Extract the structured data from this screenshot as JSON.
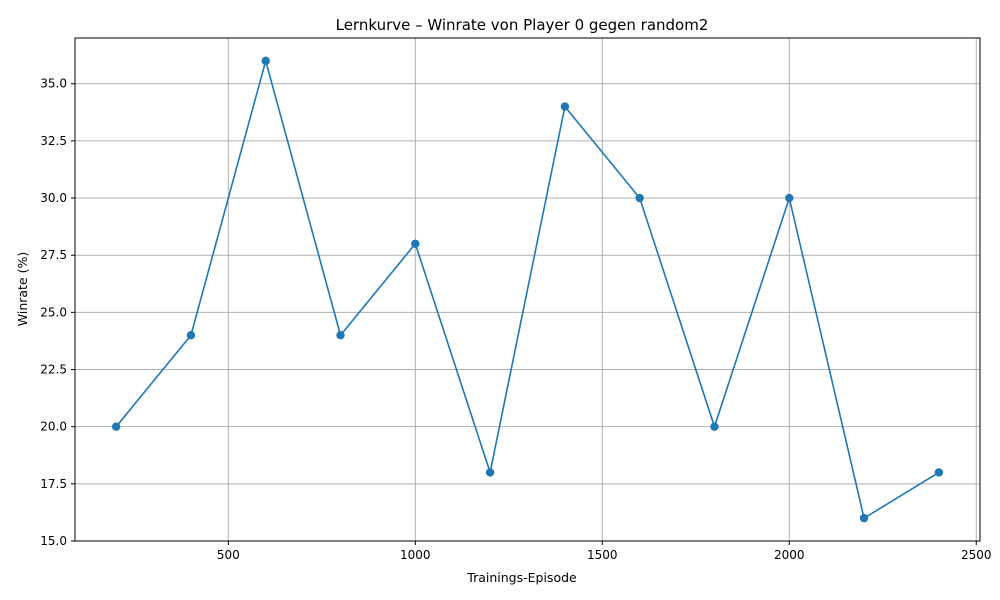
{
  "chart_data": {
    "type": "line",
    "title": "Lernkurve – Winrate von Player 0 gegen random2",
    "xlabel": "Trainings-Episode",
    "ylabel": "Winrate (%)",
    "xlim": [
      90,
      2510
    ],
    "ylim": [
      15.0,
      37.0
    ],
    "x_ticks": [
      500,
      1000,
      1500,
      2000,
      2500
    ],
    "x_tick_labels": [
      "500",
      "1000",
      "1500",
      "2000",
      "2500"
    ],
    "y_ticks": [
      15.0,
      17.5,
      20.0,
      22.5,
      25.0,
      27.5,
      30.0,
      32.5,
      35.0
    ],
    "y_tick_labels": [
      "15.0",
      "17.5",
      "20.0",
      "22.5",
      "25.0",
      "27.5",
      "30.0",
      "32.5",
      "35.0"
    ],
    "grid": true,
    "marker": "circle",
    "series": [
      {
        "color": "#1f77b4",
        "x": [
          200,
          400,
          600,
          800,
          1000,
          1200,
          1400,
          1600,
          1800,
          2000,
          2200,
          2400
        ],
        "y": [
          20,
          24,
          36,
          24,
          28,
          18,
          34,
          30,
          20,
          30,
          16,
          18
        ]
      }
    ]
  }
}
